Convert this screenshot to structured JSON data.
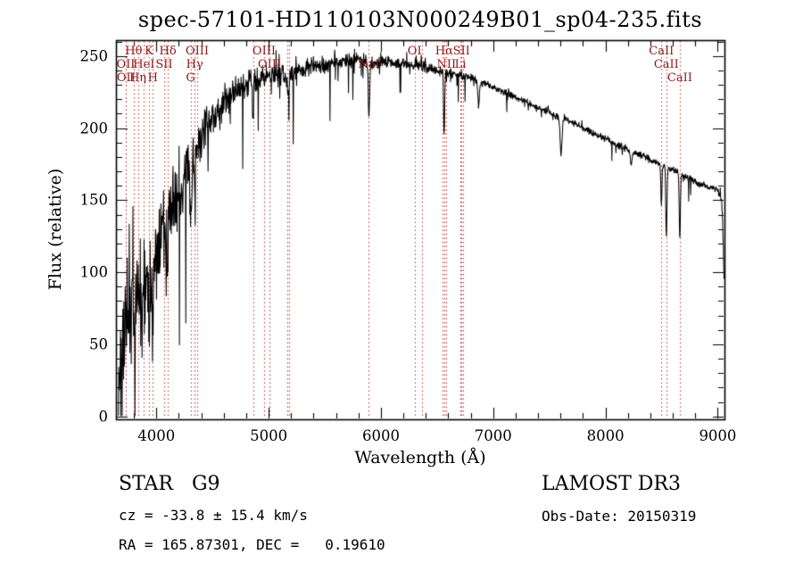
{
  "title": "spec-57101-HD110103N000249B01_sp04-235.fits",
  "footer": {
    "class_label": "STAR   G9",
    "survey": "LAMOST DR3",
    "cz": "cz = -33.8 ± 15.4 km/s",
    "obs_date": "Obs-Date: 20150319",
    "radec": "RA = 165.87301, DEC =   0.19610"
  },
  "chart_data": {
    "type": "line",
    "title": "spec-57101-HD110103N000249B01_sp04-235.fits",
    "xlabel": "Wavelength (Å)",
    "ylabel": "Flux (relative)",
    "xlim": [
      3640,
      9060
    ],
    "ylim": [
      -2,
      261
    ],
    "x_major_ticks": [
      4000,
      5000,
      6000,
      7000,
      8000,
      9000
    ],
    "x_minor_step": 200,
    "y_major_ticks": [
      0,
      50,
      100,
      150,
      200,
      250
    ],
    "y_minor_step": 10,
    "grid": false,
    "legend": "none",
    "line_color": "#000000",
    "spectral_line_color": "#c03028",
    "label_color": "#8b1a1a",
    "sample_start": 3662,
    "sample_end": 9056,
    "sample_step": 3,
    "noise_seed": 20150319,
    "continuum": [
      [
        3660,
        22
      ],
      [
        3680,
        38
      ],
      [
        3700,
        52
      ],
      [
        3720,
        63
      ],
      [
        3740,
        70
      ],
      [
        3770,
        76
      ],
      [
        3800,
        80
      ],
      [
        3830,
        83
      ],
      [
        3860,
        87
      ],
      [
        3890,
        91
      ],
      [
        3920,
        95
      ],
      [
        3950,
        100
      ],
      [
        3980,
        106
      ],
      [
        4010,
        113
      ],
      [
        4040,
        121
      ],
      [
        4070,
        128
      ],
      [
        4100,
        134
      ],
      [
        4150,
        146
      ],
      [
        4200,
        157
      ],
      [
        4250,
        166
      ],
      [
        4300,
        174
      ],
      [
        4350,
        183
      ],
      [
        4400,
        193
      ],
      [
        4450,
        201
      ],
      [
        4500,
        207
      ],
      [
        4550,
        212
      ],
      [
        4600,
        217
      ],
      [
        4650,
        222
      ],
      [
        4700,
        226
      ],
      [
        4750,
        229
      ],
      [
        4800,
        231
      ],
      [
        4850,
        232
      ],
      [
        4900,
        234
      ],
      [
        4950,
        235
      ],
      [
        5000,
        236
      ],
      [
        5050,
        237
      ],
      [
        5100,
        237
      ],
      [
        5150,
        237
      ],
      [
        5200,
        238
      ],
      [
        5250,
        239
      ],
      [
        5300,
        241
      ],
      [
        5350,
        242
      ],
      [
        5400,
        243
      ],
      [
        5450,
        243
      ],
      [
        5500,
        244
      ],
      [
        5550,
        245
      ],
      [
        5600,
        245
      ],
      [
        5650,
        246
      ],
      [
        5700,
        247
      ],
      [
        5750,
        247
      ],
      [
        5800,
        248
      ],
      [
        5850,
        247
      ],
      [
        5900,
        245
      ],
      [
        5950,
        245
      ],
      [
        6000,
        246
      ],
      [
        6050,
        246
      ],
      [
        6100,
        246
      ],
      [
        6150,
        245
      ],
      [
        6200,
        245
      ],
      [
        6250,
        244
      ],
      [
        6300,
        244
      ],
      [
        6350,
        243
      ],
      [
        6400,
        242
      ],
      [
        6450,
        241
      ],
      [
        6500,
        240
      ],
      [
        6550,
        239
      ],
      [
        6600,
        238
      ],
      [
        6650,
        237
      ],
      [
        6700,
        236
      ],
      [
        6750,
        236
      ],
      [
        6800,
        235
      ],
      [
        6850,
        233
      ],
      [
        6900,
        231
      ],
      [
        6950,
        230
      ],
      [
        7000,
        228
      ],
      [
        7100,
        225
      ],
      [
        7200,
        221
      ],
      [
        7300,
        218
      ],
      [
        7400,
        214
      ],
      [
        7500,
        211
      ],
      [
        7600,
        207
      ],
      [
        7700,
        204
      ],
      [
        7800,
        200
      ],
      [
        7900,
        196
      ],
      [
        8000,
        193
      ],
      [
        8100,
        189
      ],
      [
        8200,
        185
      ],
      [
        8300,
        182
      ],
      [
        8400,
        178
      ],
      [
        8500,
        174
      ],
      [
        8600,
        171
      ],
      [
        8700,
        167
      ],
      [
        8800,
        163
      ],
      [
        8900,
        160
      ],
      [
        9000,
        157
      ],
      [
        9025,
        155
      ],
      [
        9040,
        143
      ],
      [
        9050,
        118
      ],
      [
        9056,
        92
      ]
    ],
    "noise_amp": [
      [
        3660,
        38
      ],
      [
        3700,
        55
      ],
      [
        3750,
        57
      ],
      [
        3800,
        52
      ],
      [
        3850,
        48
      ],
      [
        3900,
        45
      ],
      [
        3950,
        42
      ],
      [
        4000,
        40
      ],
      [
        4050,
        36
      ],
      [
        4100,
        33
      ],
      [
        4200,
        28
      ],
      [
        4300,
        24
      ],
      [
        4400,
        20
      ],
      [
        4500,
        17
      ],
      [
        4600,
        15
      ],
      [
        4700,
        13
      ],
      [
        4800,
        12
      ],
      [
        4900,
        11
      ],
      [
        5000,
        10
      ],
      [
        5100,
        9.5
      ],
      [
        5200,
        9
      ],
      [
        5300,
        8
      ],
      [
        5400,
        7.5
      ],
      [
        5500,
        7
      ],
      [
        5600,
        6.5
      ],
      [
        5700,
        6
      ],
      [
        5800,
        6
      ],
      [
        5900,
        5.5
      ],
      [
        6000,
        5
      ],
      [
        6200,
        4.5
      ],
      [
        6400,
        4.2
      ],
      [
        6600,
        4
      ],
      [
        6800,
        3.6
      ],
      [
        7000,
        3.2
      ],
      [
        7500,
        3
      ],
      [
        8000,
        3
      ],
      [
        8500,
        3
      ],
      [
        9000,
        3.2
      ],
      [
        9056,
        6
      ]
    ],
    "absorption_features": [
      {
        "wavelength": 3934,
        "depth": 42,
        "sigma": 6
      },
      {
        "wavelength": 3968,
        "depth": 38,
        "sigma": 6
      },
      {
        "wavelength": 4102,
        "depth": 32,
        "sigma": 5
      },
      {
        "wavelength": 4304,
        "depth": 26,
        "sigma": 8
      },
      {
        "wavelength": 4341,
        "depth": 30,
        "sigma": 5
      },
      {
        "wavelength": 4861,
        "depth": 32,
        "sigma": 5
      },
      {
        "wavelength": 5175,
        "depth": 16,
        "sigma": 8
      },
      {
        "wavelength": 5893,
        "depth": 38,
        "sigma": 6
      },
      {
        "wavelength": 6563,
        "depth": 42,
        "sigma": 5
      },
      {
        "wavelength": 6870,
        "depth": 16,
        "sigma": 7
      },
      {
        "wavelength": 7605,
        "depth": 25,
        "sigma": 8
      },
      {
        "wavelength": 8230,
        "depth": 10,
        "sigma": 8
      },
      {
        "wavelength": 8498,
        "depth": 28,
        "sigma": 5
      },
      {
        "wavelength": 8542,
        "depth": 50,
        "sigma": 5
      },
      {
        "wavelength": 8662,
        "depth": 46,
        "sigma": 5
      }
    ],
    "spectral_lines": [
      {
        "wavelength": 3727,
        "label": "OII",
        "row": 2
      },
      {
        "wavelength": 3730,
        "label": "OII",
        "row": 3
      },
      {
        "wavelength": 3798,
        "label": "Hθ",
        "row": 1
      },
      {
        "wavelength": 3835,
        "label": "Hη",
        "row": 3
      },
      {
        "wavelength": 3889,
        "label": "HeI",
        "row": 2
      },
      {
        "wavelength": 3934,
        "label": "K",
        "row": 1
      },
      {
        "wavelength": 3968,
        "label": "H",
        "row": 3
      },
      {
        "wavelength": 4069,
        "label": "SII",
        "row": 2
      },
      {
        "wavelength": 4102,
        "label": "Hδ",
        "row": 1
      },
      {
        "wavelength": 4304,
        "label": "G",
        "row": 3
      },
      {
        "wavelength": 4341,
        "label": "Hγ",
        "row": 2
      },
      {
        "wavelength": 4363,
        "label": "OIII",
        "row": 1
      },
      {
        "wavelength": 4861,
        "label": "",
        "row": 0
      },
      {
        "wavelength": 4959,
        "label": "OIII",
        "row": 1
      },
      {
        "wavelength": 5007,
        "label": "OIII",
        "row": 2
      },
      {
        "wavelength": 5167,
        "label": "",
        "row": 0
      },
      {
        "wavelength": 5183,
        "label": "",
        "row": 0
      },
      {
        "wavelength": 5893,
        "label": "NaI",
        "row": 2
      },
      {
        "wavelength": 6300,
        "label": "OI",
        "row": 1
      },
      {
        "wavelength": 6364,
        "label": "",
        "row": 0
      },
      {
        "wavelength": 6548,
        "label": "",
        "row": 0
      },
      {
        "wavelength": 6563,
        "label": "Hα",
        "row": 1
      },
      {
        "wavelength": 6583,
        "label": "NII",
        "row": 2
      },
      {
        "wavelength": 6708,
        "label": "Li",
        "row": 2
      },
      {
        "wavelength": 6717,
        "label": "SII",
        "row": 1
      },
      {
        "wavelength": 6731,
        "label": "",
        "row": 0
      },
      {
        "wavelength": 8498,
        "label": "CaII",
        "row": 1
      },
      {
        "wavelength": 8542,
        "label": "CaII",
        "row": 2
      },
      {
        "wavelength": 8662,
        "label": "CaII",
        "row": 3
      }
    ]
  }
}
